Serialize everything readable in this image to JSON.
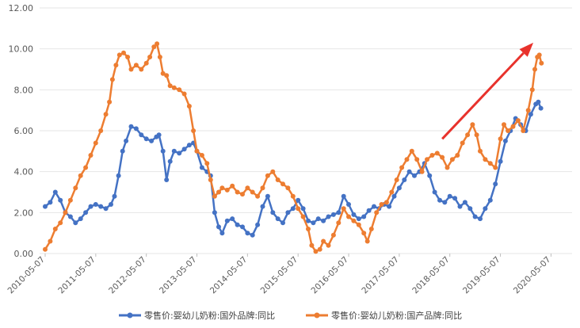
{
  "chart_data": {
    "type": "line",
    "title": "",
    "xlabel": "",
    "ylabel": "",
    "ylim": [
      0,
      12
    ],
    "yticks": [
      "0.00",
      "2.00",
      "4.00",
      "6.00",
      "8.00",
      "10.00",
      "12.00"
    ],
    "xticks": [
      "2010-05-07",
      "2011-05-07",
      "2012-05-07",
      "2013-05-07",
      "2014-05-07",
      "2015-05-07",
      "2016-05-07",
      "2017-05-07",
      "2018-05-07",
      "2019-05-07",
      "2020-05-07"
    ],
    "grid": true,
    "legend_position": "bottom",
    "series": [
      {
        "name": "零售价:婴幼儿奶粉:国外品牌:同比",
        "color": "#4472C4",
        "values": [
          [
            2010.35,
            2.3
          ],
          [
            2010.45,
            2.5
          ],
          [
            2010.55,
            3.0
          ],
          [
            2010.65,
            2.6
          ],
          [
            2010.75,
            2.0
          ],
          [
            2010.85,
            1.8
          ],
          [
            2010.95,
            1.5
          ],
          [
            2011.05,
            1.7
          ],
          [
            2011.15,
            2.0
          ],
          [
            2011.25,
            2.3
          ],
          [
            2011.35,
            2.4
          ],
          [
            2011.45,
            2.3
          ],
          [
            2011.55,
            2.2
          ],
          [
            2011.65,
            2.4
          ],
          [
            2011.72,
            2.8
          ],
          [
            2011.8,
            3.8
          ],
          [
            2011.88,
            5.0
          ],
          [
            2011.95,
            5.5
          ],
          [
            2012.05,
            6.2
          ],
          [
            2012.15,
            6.1
          ],
          [
            2012.25,
            5.8
          ],
          [
            2012.35,
            5.6
          ],
          [
            2012.45,
            5.5
          ],
          [
            2012.55,
            5.7
          ],
          [
            2012.6,
            5.8
          ],
          [
            2012.68,
            5.0
          ],
          [
            2012.75,
            3.6
          ],
          [
            2012.82,
            4.5
          ],
          [
            2012.9,
            5.0
          ],
          [
            2013.0,
            4.9
          ],
          [
            2013.1,
            5.1
          ],
          [
            2013.2,
            5.3
          ],
          [
            2013.28,
            5.4
          ],
          [
            2013.35,
            5.0
          ],
          [
            2013.45,
            4.2
          ],
          [
            2013.55,
            4.0
          ],
          [
            2013.62,
            3.8
          ],
          [
            2013.7,
            2.0
          ],
          [
            2013.78,
            1.3
          ],
          [
            2013.85,
            1.0
          ],
          [
            2013.95,
            1.6
          ],
          [
            2014.05,
            1.7
          ],
          [
            2014.15,
            1.4
          ],
          [
            2014.25,
            1.3
          ],
          [
            2014.35,
            1.0
          ],
          [
            2014.45,
            0.9
          ],
          [
            2014.55,
            1.4
          ],
          [
            2014.65,
            2.3
          ],
          [
            2014.75,
            2.8
          ],
          [
            2014.85,
            2.0
          ],
          [
            2014.95,
            1.7
          ],
          [
            2015.05,
            1.5
          ],
          [
            2015.15,
            2.0
          ],
          [
            2015.25,
            2.2
          ],
          [
            2015.35,
            2.6
          ],
          [
            2015.45,
            2.2
          ],
          [
            2015.55,
            1.6
          ],
          [
            2015.65,
            1.5
          ],
          [
            2015.75,
            1.7
          ],
          [
            2015.85,
            1.6
          ],
          [
            2015.95,
            1.8
          ],
          [
            2016.05,
            1.9
          ],
          [
            2016.15,
            2.0
          ],
          [
            2016.25,
            2.8
          ],
          [
            2016.35,
            2.4
          ],
          [
            2016.45,
            1.9
          ],
          [
            2016.55,
            1.7
          ],
          [
            2016.65,
            1.8
          ],
          [
            2016.75,
            2.1
          ],
          [
            2016.85,
            2.3
          ],
          [
            2016.95,
            2.2
          ],
          [
            2017.05,
            2.4
          ],
          [
            2017.15,
            2.3
          ],
          [
            2017.25,
            2.8
          ],
          [
            2017.35,
            3.2
          ],
          [
            2017.45,
            3.6
          ],
          [
            2017.55,
            4.0
          ],
          [
            2017.65,
            3.8
          ],
          [
            2017.75,
            4.0
          ],
          [
            2017.85,
            4.4
          ],
          [
            2017.95,
            3.8
          ],
          [
            2018.05,
            3.0
          ],
          [
            2018.15,
            2.6
          ],
          [
            2018.25,
            2.5
          ],
          [
            2018.35,
            2.8
          ],
          [
            2018.45,
            2.7
          ],
          [
            2018.55,
            2.3
          ],
          [
            2018.65,
            2.5
          ],
          [
            2018.75,
            2.2
          ],
          [
            2018.85,
            1.8
          ],
          [
            2018.95,
            1.7
          ],
          [
            2019.05,
            2.2
          ],
          [
            2019.15,
            2.6
          ],
          [
            2019.25,
            3.4
          ],
          [
            2019.35,
            4.5
          ],
          [
            2019.45,
            5.5
          ],
          [
            2019.55,
            6.0
          ],
          [
            2019.65,
            6.6
          ],
          [
            2019.75,
            6.3
          ],
          [
            2019.85,
            6.0
          ],
          [
            2019.95,
            6.8
          ],
          [
            2020.05,
            7.3
          ],
          [
            2020.1,
            7.4
          ],
          [
            2020.15,
            7.1
          ]
        ]
      },
      {
        "name": "零售价:婴幼儿奶粉:国产品牌:同比",
        "color": "#ED7D31",
        "values": [
          [
            2010.35,
            0.2
          ],
          [
            2010.45,
            0.6
          ],
          [
            2010.55,
            1.2
          ],
          [
            2010.65,
            1.5
          ],
          [
            2010.75,
            2.0
          ],
          [
            2010.85,
            2.6
          ],
          [
            2010.95,
            3.2
          ],
          [
            2011.05,
            3.8
          ],
          [
            2011.15,
            4.2
          ],
          [
            2011.25,
            4.8
          ],
          [
            2011.35,
            5.4
          ],
          [
            2011.45,
            6.0
          ],
          [
            2011.55,
            6.8
          ],
          [
            2011.62,
            7.4
          ],
          [
            2011.68,
            8.5
          ],
          [
            2011.75,
            9.2
          ],
          [
            2011.82,
            9.7
          ],
          [
            2011.9,
            9.8
          ],
          [
            2011.98,
            9.6
          ],
          [
            2012.05,
            9.0
          ],
          [
            2012.15,
            9.2
          ],
          [
            2012.25,
            9.0
          ],
          [
            2012.35,
            9.3
          ],
          [
            2012.42,
            9.6
          ],
          [
            2012.5,
            10.1
          ],
          [
            2012.56,
            10.25
          ],
          [
            2012.62,
            9.6
          ],
          [
            2012.68,
            8.8
          ],
          [
            2012.75,
            8.7
          ],
          [
            2012.82,
            8.2
          ],
          [
            2012.9,
            8.1
          ],
          [
            2013.0,
            8.0
          ],
          [
            2013.1,
            7.8
          ],
          [
            2013.2,
            7.2
          ],
          [
            2013.28,
            6.0
          ],
          [
            2013.35,
            5.0
          ],
          [
            2013.45,
            4.8
          ],
          [
            2013.55,
            4.4
          ],
          [
            2013.62,
            3.6
          ],
          [
            2013.7,
            2.8
          ],
          [
            2013.78,
            3.0
          ],
          [
            2013.85,
            3.2
          ],
          [
            2013.95,
            3.1
          ],
          [
            2014.05,
            3.3
          ],
          [
            2014.15,
            3.0
          ],
          [
            2014.25,
            2.9
          ],
          [
            2014.35,
            3.2
          ],
          [
            2014.45,
            3.0
          ],
          [
            2014.55,
            2.8
          ],
          [
            2014.65,
            3.2
          ],
          [
            2014.75,
            3.8
          ],
          [
            2014.85,
            4.0
          ],
          [
            2014.95,
            3.6
          ],
          [
            2015.05,
            3.4
          ],
          [
            2015.15,
            3.2
          ],
          [
            2015.25,
            2.8
          ],
          [
            2015.35,
            2.2
          ],
          [
            2015.45,
            1.8
          ],
          [
            2015.55,
            1.2
          ],
          [
            2015.62,
            0.4
          ],
          [
            2015.7,
            0.1
          ],
          [
            2015.78,
            0.2
          ],
          [
            2015.85,
            0.6
          ],
          [
            2015.95,
            0.4
          ],
          [
            2016.05,
            0.9
          ],
          [
            2016.15,
            1.5
          ],
          [
            2016.25,
            2.2
          ],
          [
            2016.35,
            1.8
          ],
          [
            2016.45,
            1.6
          ],
          [
            2016.55,
            1.4
          ],
          [
            2016.65,
            1.0
          ],
          [
            2016.72,
            0.6
          ],
          [
            2016.8,
            1.2
          ],
          [
            2016.9,
            2.0
          ],
          [
            2017.0,
            2.4
          ],
          [
            2017.1,
            2.5
          ],
          [
            2017.2,
            3.0
          ],
          [
            2017.3,
            3.6
          ],
          [
            2017.4,
            4.2
          ],
          [
            2017.5,
            4.6
          ],
          [
            2017.6,
            5.0
          ],
          [
            2017.7,
            4.6
          ],
          [
            2017.8,
            4.0
          ],
          [
            2017.9,
            4.6
          ],
          [
            2018.0,
            4.8
          ],
          [
            2018.1,
            4.9
          ],
          [
            2018.2,
            4.7
          ],
          [
            2018.3,
            4.2
          ],
          [
            2018.4,
            4.6
          ],
          [
            2018.5,
            4.8
          ],
          [
            2018.6,
            5.4
          ],
          [
            2018.7,
            5.8
          ],
          [
            2018.8,
            6.3
          ],
          [
            2018.88,
            5.8
          ],
          [
            2018.95,
            5.0
          ],
          [
            2019.05,
            4.6
          ],
          [
            2019.15,
            4.4
          ],
          [
            2019.25,
            4.2
          ],
          [
            2019.35,
            5.6
          ],
          [
            2019.42,
            6.3
          ],
          [
            2019.5,
            6.0
          ],
          [
            2019.6,
            6.2
          ],
          [
            2019.7,
            6.5
          ],
          [
            2019.8,
            6.0
          ],
          [
            2019.9,
            7.0
          ],
          [
            2019.98,
            8.0
          ],
          [
            2020.03,
            9.0
          ],
          [
            2020.08,
            9.6
          ],
          [
            2020.12,
            9.7
          ],
          [
            2020.16,
            9.3
          ]
        ]
      }
    ],
    "annotations": [
      {
        "type": "arrow",
        "color": "#E8322C",
        "from": [
          2018.2,
          5.6
        ],
        "to": [
          2020.0,
          10.3
        ]
      }
    ]
  }
}
